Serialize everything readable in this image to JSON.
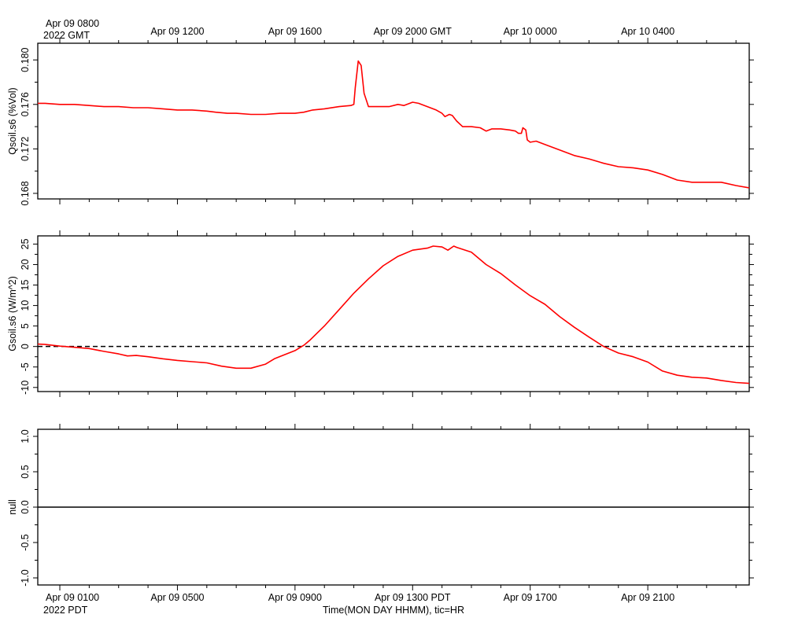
{
  "chart_data": {
    "type": "line",
    "top_time_label": {
      "first_tick": "Apr 09 0800",
      "year_tz": "2022 GMT"
    },
    "bottom_time_label": {
      "first_tick": "Apr 09 0100",
      "year_tz": "2022 PDT"
    },
    "xlabel": "Time(MON DAY HHMM), tic=HR",
    "x_range_hours_pdt": [
      0.25,
      24.45
    ],
    "top_ticks_gmt": [
      "Apr 09 0800",
      "Apr 09 1200",
      "Apr 09 1600",
      "Apr 09 2000 GMT",
      "Apr 10 0000",
      "Apr 10 0400"
    ],
    "bottom_ticks_pdt": [
      "Apr 09 0100",
      "Apr 09 0500",
      "Apr 09 0900",
      "Apr 09 1300 PDT",
      "Apr 09 1700",
      "Apr 09 2100"
    ],
    "major_tick_hours_pdt": [
      1,
      5,
      9,
      13,
      17,
      21
    ],
    "panels": [
      {
        "ylabel": "Qsoil.s6 (%Vol)",
        "ylim": [
          0.1675,
          0.1815
        ],
        "yticks": [
          0.168,
          0.172,
          0.176,
          0.18
        ],
        "ytick_labels": [
          "0.168",
          "0.172",
          "0.176",
          "0.180"
        ],
        "zero_line": false,
        "series": [
          {
            "color": "#ff0000",
            "x": [
              0.25,
              0.5,
              1.0,
              1.5,
              2.0,
              2.5,
              3.0,
              3.5,
              4.0,
              4.5,
              5.0,
              5.5,
              6.0,
              6.3,
              6.7,
              7.0,
              7.5,
              8.0,
              8.5,
              9.0,
              9.3,
              9.6,
              10.0,
              10.5,
              10.9,
              11.0,
              11.05,
              11.15,
              11.25,
              11.35,
              11.5,
              11.7,
              12.0,
              12.2,
              12.5,
              12.7,
              13.0,
              13.2,
              13.5,
              13.8,
              14.0,
              14.1,
              14.25,
              14.35,
              14.5,
              14.7,
              15.0,
              15.3,
              15.5,
              15.7,
              16.0,
              16.3,
              16.5,
              16.6,
              16.7,
              16.75,
              16.85,
              16.9,
              17.0,
              17.2,
              17.5,
              18.0,
              18.5,
              19.0,
              19.5,
              20.0,
              20.5,
              21.0,
              21.5,
              22.0,
              22.5,
              23.0,
              23.5,
              24.0,
              24.45
            ],
            "y": [
              0.1761,
              0.1761,
              0.176,
              0.176,
              0.1759,
              0.1758,
              0.1758,
              0.1757,
              0.1757,
              0.1756,
              0.1755,
              0.1755,
              0.1754,
              0.1753,
              0.1752,
              0.1752,
              0.1751,
              0.1751,
              0.1752,
              0.1752,
              0.1753,
              0.1755,
              0.1756,
              0.1758,
              0.1759,
              0.176,
              0.1775,
              0.1799,
              0.1795,
              0.177,
              0.1758,
              0.1758,
              0.1758,
              0.1758,
              0.176,
              0.1759,
              0.1762,
              0.1761,
              0.1758,
              0.1755,
              0.1752,
              0.1749,
              0.1751,
              0.175,
              0.1745,
              0.174,
              0.174,
              0.1739,
              0.1736,
              0.1738,
              0.1738,
              0.1737,
              0.1736,
              0.1734,
              0.1734,
              0.1739,
              0.1737,
              0.1728,
              0.1726,
              0.1727,
              0.1724,
              0.1719,
              0.1714,
              0.1711,
              0.1707,
              0.1704,
              0.1703,
              0.1701,
              0.1697,
              0.1692,
              0.169,
              0.169,
              0.169,
              0.1687,
              0.1685
            ]
          }
        ]
      },
      {
        "ylabel": "Gsoil.s6 (W/m^2)",
        "ylim": [
          -11,
          27
        ],
        "yticks": [
          -10,
          -5,
          0,
          5,
          10,
          15,
          20,
          25
        ],
        "ytick_labels": [
          "-10",
          "-5",
          "0",
          "5",
          "10",
          "15",
          "20",
          "25"
        ],
        "zero_line": true,
        "series": [
          {
            "color": "#ff0000",
            "x": [
              0.25,
              0.5,
              1.0,
              1.5,
              2.0,
              2.5,
              3.0,
              3.3,
              3.6,
              4.0,
              4.5,
              5.0,
              5.5,
              6.0,
              6.5,
              7.0,
              7.5,
              8.0,
              8.3,
              8.5,
              9.0,
              9.3,
              9.5,
              10.0,
              10.5,
              11.0,
              11.5,
              12.0,
              12.5,
              13.0,
              13.5,
              13.7,
              14.0,
              14.2,
              14.4,
              14.5,
              15.0,
              15.5,
              16.0,
              16.5,
              17.0,
              17.5,
              18.0,
              18.5,
              19.0,
              19.5,
              20.0,
              20.5,
              21.0,
              21.5,
              22.0,
              22.5,
              23.0,
              23.5,
              24.0,
              24.45
            ],
            "y": [
              0.6,
              0.5,
              0.1,
              -0.2,
              -0.5,
              -1.2,
              -1.8,
              -2.3,
              -2.2,
              -2.5,
              -3.0,
              -3.4,
              -3.7,
              -4.0,
              -4.8,
              -5.3,
              -5.3,
              -4.3,
              -3.0,
              -2.4,
              -1.0,
              0.3,
              1.5,
              5.0,
              9.0,
              13.0,
              16.5,
              19.7,
              22.0,
              23.5,
              24.0,
              24.5,
              24.3,
              23.5,
              24.5,
              24.2,
              23.0,
              20.0,
              17.8,
              15.0,
              12.4,
              10.3,
              7.3,
              4.7,
              2.3,
              0.0,
              -1.6,
              -2.5,
              -3.8,
              -6.0,
              -7.0,
              -7.5,
              -7.7,
              -8.3,
              -8.8,
              -9.0
            ]
          }
        ]
      },
      {
        "ylabel": "null",
        "ylim": [
          -1.1,
          1.1
        ],
        "yticks": [
          -1.0,
          -0.5,
          0.0,
          0.5,
          1.0
        ],
        "ytick_labels": [
          "-1.0",
          "-0.5",
          "0.0",
          "0.5",
          "1.0"
        ],
        "zero_line": false,
        "constant_line": 0.0,
        "series": []
      }
    ]
  }
}
